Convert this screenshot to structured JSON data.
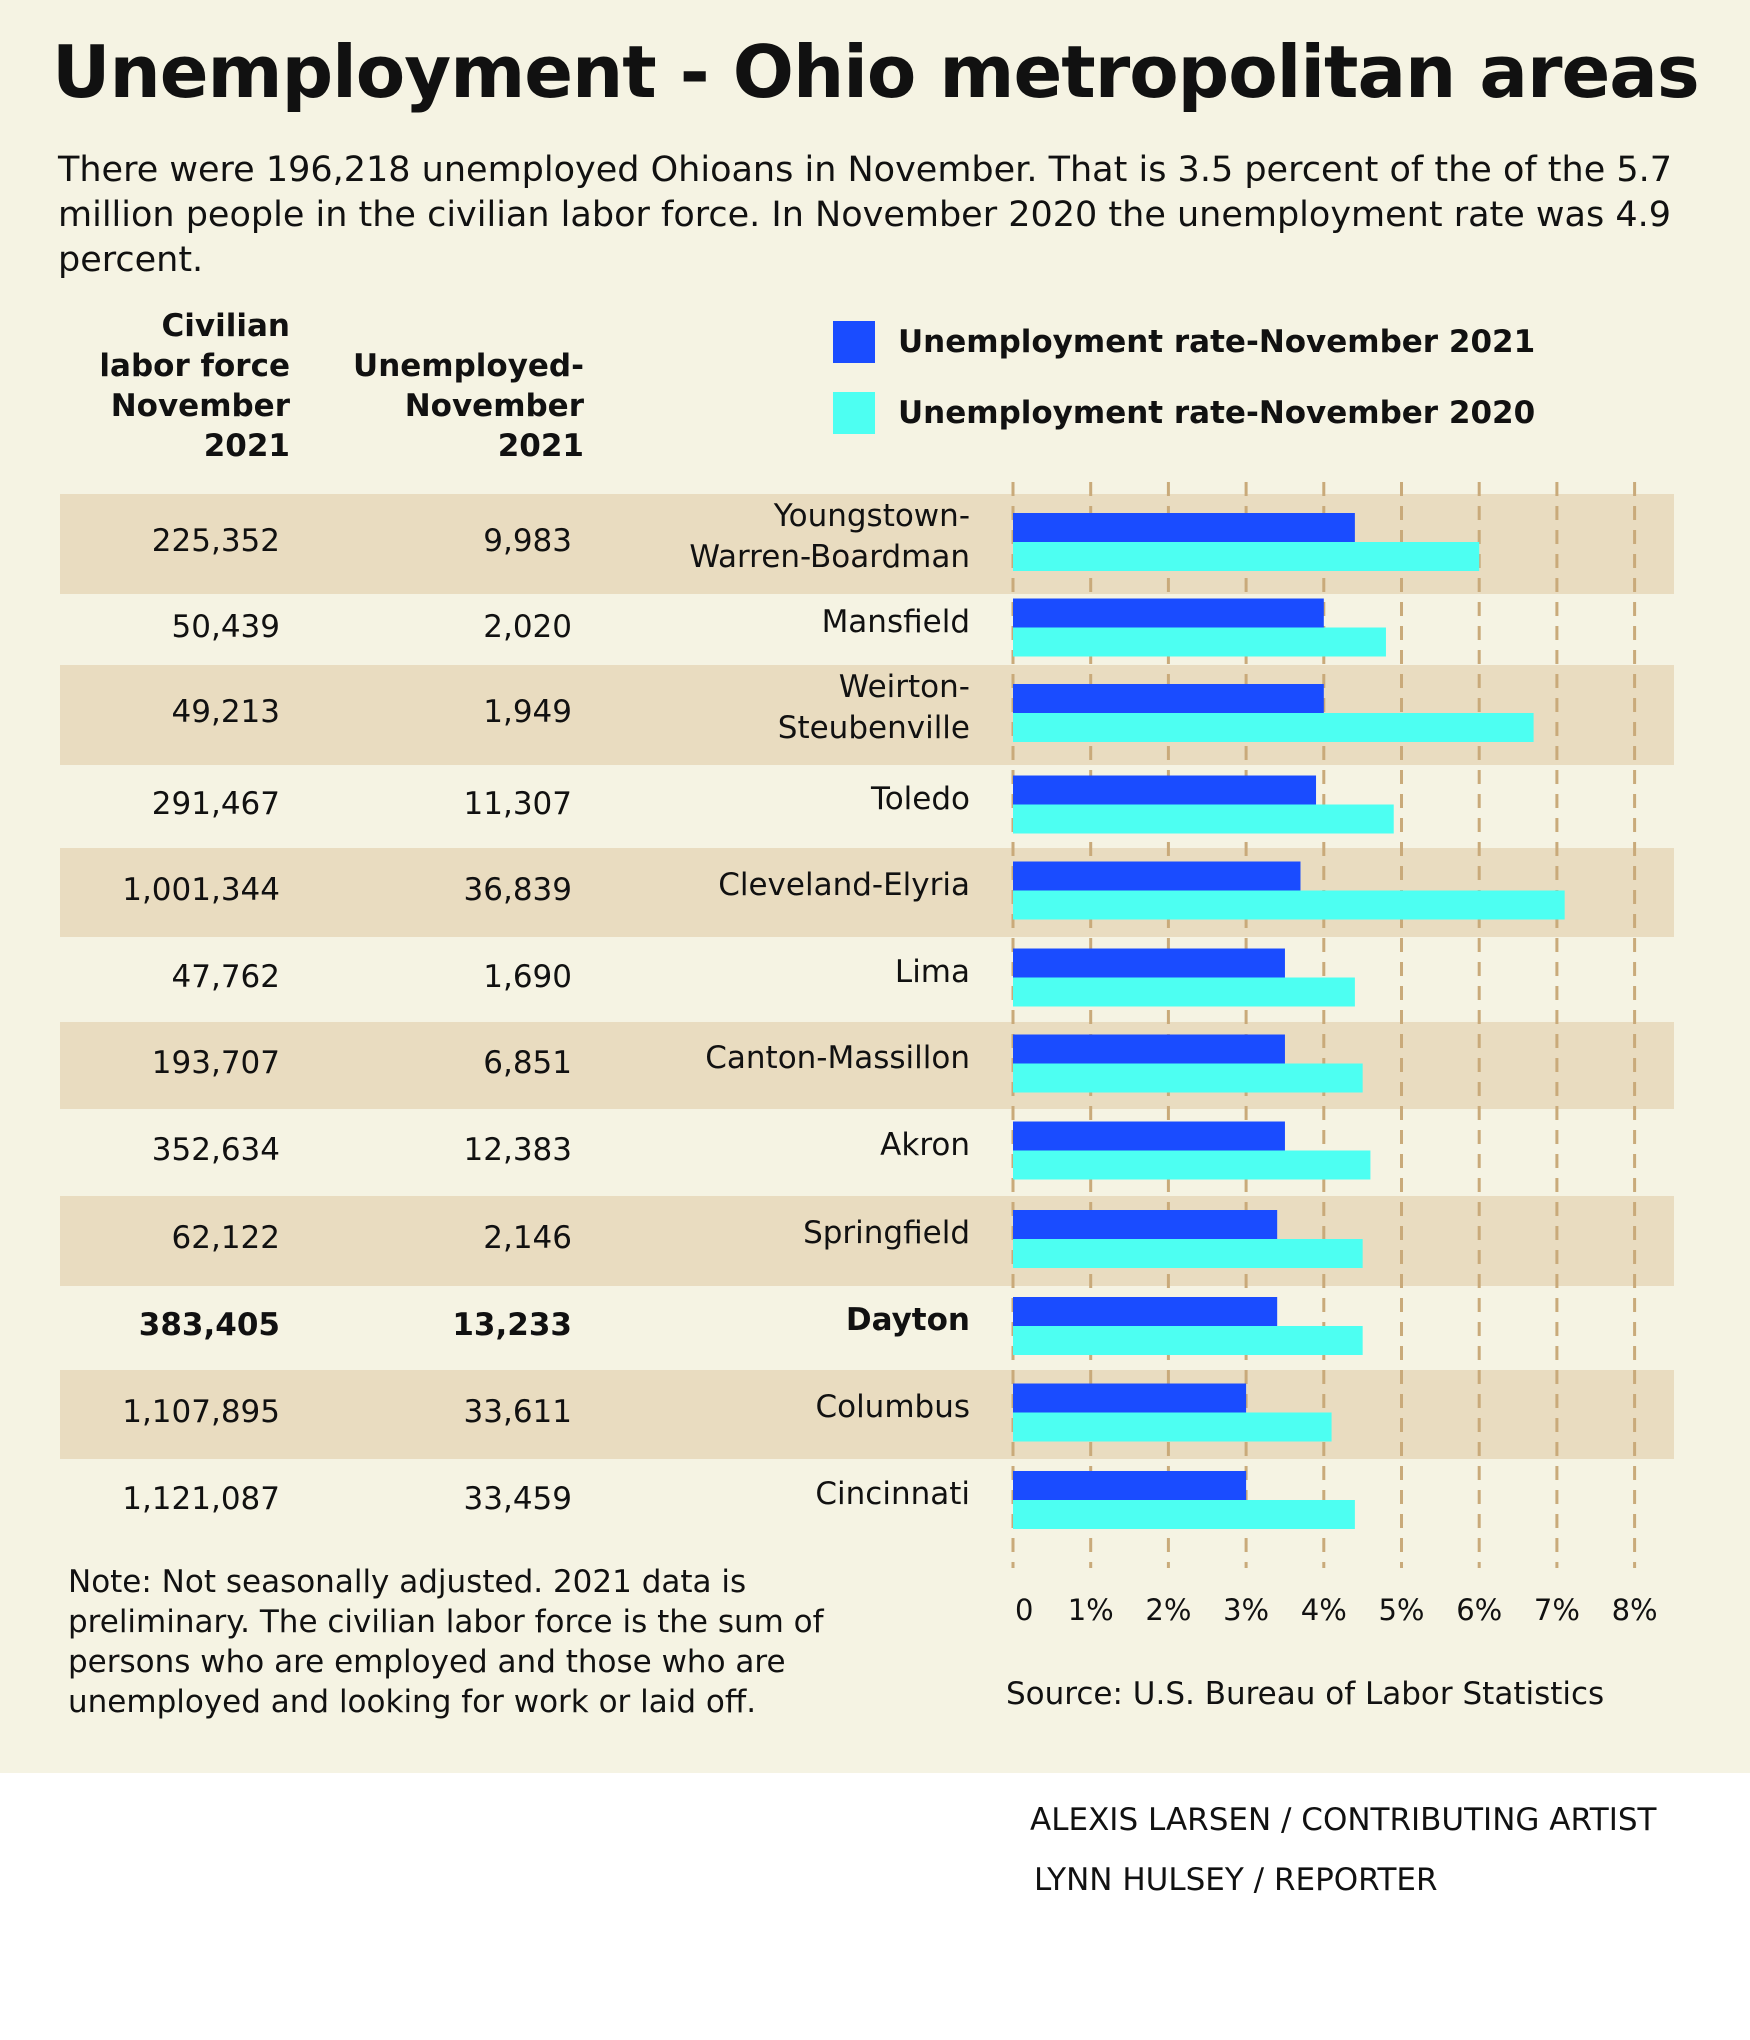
{
  "title": "Unemployment - Ohio metropolitan areas",
  "subtitle": "There were 196,218 unemployed Ohioans in November. That is 3.5 percent of the of the 5.7 million people in the civilian labor force. In November 2020 the unemployment rate was 4.9 percent.",
  "column_headers": {
    "labor_force": [
      "Civilian",
      "labor force",
      "November",
      "2021"
    ],
    "unemployed": [
      "Unemployed-",
      "November",
      "2021"
    ]
  },
  "colors": {
    "background": "#f5f3e3",
    "band": "#e9dcc0",
    "series_2021": "#1a4cff",
    "series_2020": "#4dfff2",
    "gridline": "#c9aa7a"
  },
  "rows": [
    {
      "metro": [
        "Youngstown-",
        "Warren-Boardman"
      ],
      "labor_force": "225,352",
      "unemployed": "9,983",
      "bold": false
    },
    {
      "metro": [
        "Mansfield"
      ],
      "labor_force": "50,439",
      "unemployed": "2,020",
      "bold": false
    },
    {
      "metro": [
        "Weirton-",
        "Steubenville"
      ],
      "labor_force": "49,213",
      "unemployed": "1,949",
      "bold": false
    },
    {
      "metro": [
        "Toledo"
      ],
      "labor_force": "291,467",
      "unemployed": "11,307",
      "bold": false
    },
    {
      "metro": [
        "Cleveland-Elyria"
      ],
      "labor_force": "1,001,344",
      "unemployed": "36,839",
      "bold": false
    },
    {
      "metro": [
        "Lima"
      ],
      "labor_force": "47,762",
      "unemployed": "1,690",
      "bold": false
    },
    {
      "metro": [
        "Canton-Massillon"
      ],
      "labor_force": "193,707",
      "unemployed": "6,851",
      "bold": false
    },
    {
      "metro": [
        "Akron"
      ],
      "labor_force": "352,634",
      "unemployed": "12,383",
      "bold": false
    },
    {
      "metro": [
        "Springfield"
      ],
      "labor_force": "62,122",
      "unemployed": "2,146",
      "bold": false
    },
    {
      "metro": [
        "Dayton"
      ],
      "labor_force": "383,405",
      "unemployed": "13,233",
      "bold": true
    },
    {
      "metro": [
        "Columbus"
      ],
      "labor_force": "1,107,895",
      "unemployed": "33,611",
      "bold": false
    },
    {
      "metro": [
        "Cincinnati"
      ],
      "labor_force": "1,121,087",
      "unemployed": "33,459",
      "bold": false
    }
  ],
  "chart_data": {
    "type": "bar",
    "orientation": "horizontal",
    "categories": [
      "Youngstown-Warren-Boardman",
      "Mansfield",
      "Weirton-Steubenville",
      "Toledo",
      "Cleveland-Elyria",
      "Lima",
      "Canton-Massillon",
      "Akron",
      "Springfield",
      "Dayton",
      "Columbus",
      "Cincinnati"
    ],
    "series": [
      {
        "name": "Unemployment rate-November 2021",
        "color": "#1a4cff",
        "values": [
          4.4,
          4.0,
          4.0,
          3.9,
          3.7,
          3.5,
          3.5,
          3.5,
          3.4,
          3.4,
          3.0,
          3.0
        ]
      },
      {
        "name": "Unemployment rate-November 2020",
        "color": "#4dfff2",
        "values": [
          6.0,
          4.8,
          6.7,
          4.9,
          7.1,
          4.4,
          4.5,
          4.6,
          4.5,
          4.5,
          4.1,
          4.4
        ]
      }
    ],
    "xlim": [
      0,
      8
    ],
    "xticks": [
      "0",
      "1%",
      "2%",
      "3%",
      "4%",
      "5%",
      "6%",
      "7%",
      "8%"
    ],
    "grid": "dashed vertical",
    "legend": "top-right",
    "source": "Source: U.S. Bureau of Labor Statistics"
  },
  "note": "Note: Not seasonally adjusted. 2021 data is preliminary. The civilian labor force is the sum of persons who are employed and those who are unemployed and looking for work or laid off.",
  "credits": [
    "ALEXIS LARSEN / CONTRIBUTING ARTIST",
    "LYNN HULSEY / REPORTER"
  ]
}
